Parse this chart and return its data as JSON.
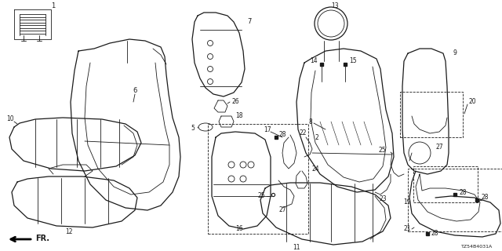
{
  "bg_color": "#ffffff",
  "line_color": "#1a1a1a",
  "catalog_code": "TZ54B4031A",
  "fig_w": 6.4,
  "fig_h": 3.2,
  "dpi": 100,
  "xlim": [
    0,
    640
  ],
  "ylim": [
    0,
    320
  ]
}
